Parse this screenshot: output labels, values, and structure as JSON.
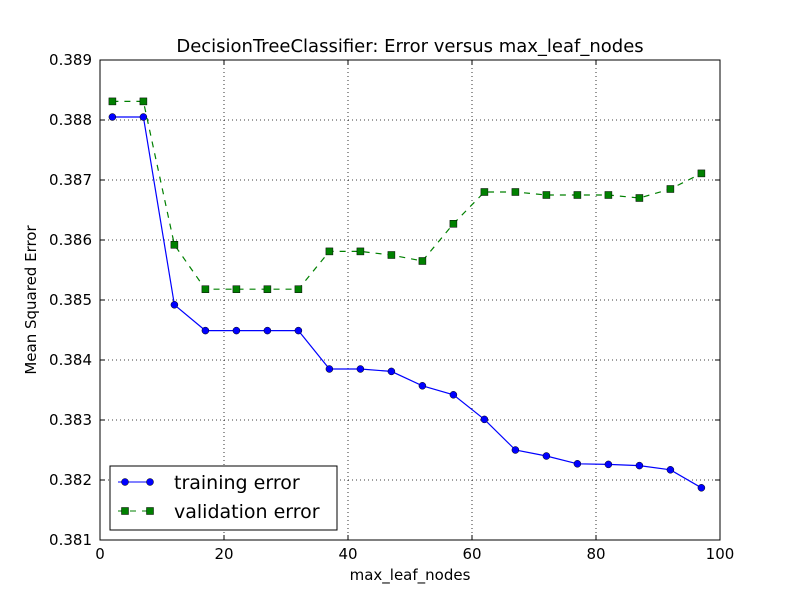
{
  "chart_data": {
    "type": "line",
    "title": "DecisionTreeClassifier: Error versus max_leaf_nodes",
    "xlabel": "max_leaf_nodes",
    "ylabel": "Mean Squared Error",
    "xlim": [
      0,
      100
    ],
    "ylim": [
      0.381,
      0.389
    ],
    "xticks": [
      "0",
      "20",
      "40",
      "60",
      "80",
      "100"
    ],
    "yticks": [
      "0.381",
      "0.382",
      "0.383",
      "0.384",
      "0.385",
      "0.386",
      "0.387",
      "0.388",
      "0.389"
    ],
    "grid": true,
    "legend_position": "lower-left",
    "x": [
      2,
      7,
      12,
      17,
      22,
      27,
      32,
      37,
      42,
      47,
      52,
      57,
      62,
      67,
      72,
      77,
      82,
      87,
      92,
      97
    ],
    "series": [
      {
        "name": "training error",
        "color": "#0000ff",
        "linestyle": "solid",
        "marker": "circle",
        "values": [
          0.38805,
          0.38805,
          0.38492,
          0.38449,
          0.38449,
          0.38449,
          0.38449,
          0.38385,
          0.38385,
          0.38381,
          0.38357,
          0.38342,
          0.38301,
          0.3825,
          0.3824,
          0.38227,
          0.38226,
          0.38224,
          0.38217,
          0.38187
        ]
      },
      {
        "name": "validation error",
        "color": "#008000",
        "linestyle": "dashed",
        "marker": "square",
        "values": [
          0.38831,
          0.38831,
          0.38592,
          0.38518,
          0.38518,
          0.38518,
          0.38518,
          0.38581,
          0.38581,
          0.38575,
          0.38565,
          0.38627,
          0.3868,
          0.3868,
          0.38675,
          0.38675,
          0.38675,
          0.3867,
          0.38685,
          0.38711
        ]
      }
    ]
  }
}
